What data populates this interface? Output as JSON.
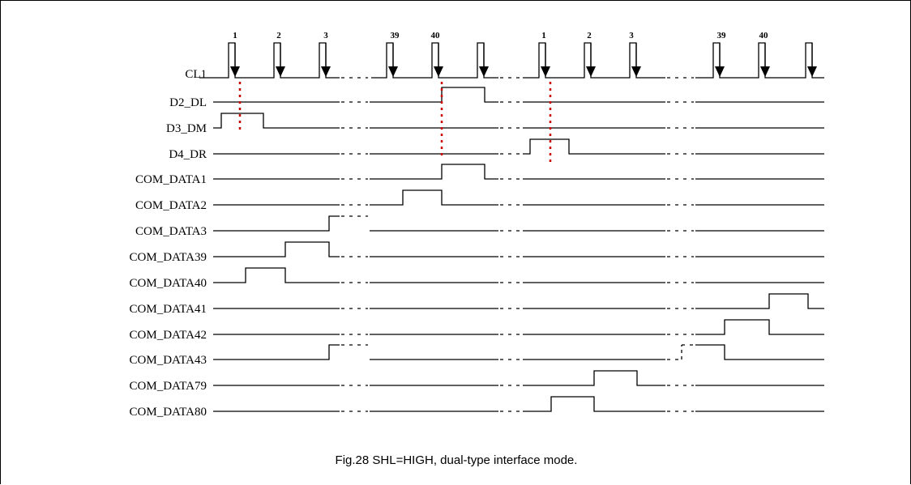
{
  "caption": "Fig.28  SHL=HIGH, dual-type interface mode.",
  "clock": {
    "name": "CL1",
    "pulse_labels": [
      "1",
      "2",
      "3",
      "39",
      "40",
      "",
      "1",
      "2",
      "3",
      "39",
      "40",
      ""
    ]
  },
  "signals": [
    {
      "name": "D2_DL"
    },
    {
      "name": "D3_DM"
    },
    {
      "name": "D4_DR"
    },
    {
      "name": "COM_DATA1"
    },
    {
      "name": "COM_DATA2"
    },
    {
      "name": "COM_DATA3"
    },
    {
      "name": "COM_DATA39"
    },
    {
      "name": "COM_DATA40"
    },
    {
      "name": "COM_DATA41"
    },
    {
      "name": "COM_DATA42"
    },
    {
      "name": "COM_DATA43"
    },
    {
      "name": "COM_DATA79"
    },
    {
      "name": "COM_DATA80"
    }
  ],
  "colors": {
    "line": "#000000",
    "marker": "#cc0000"
  }
}
